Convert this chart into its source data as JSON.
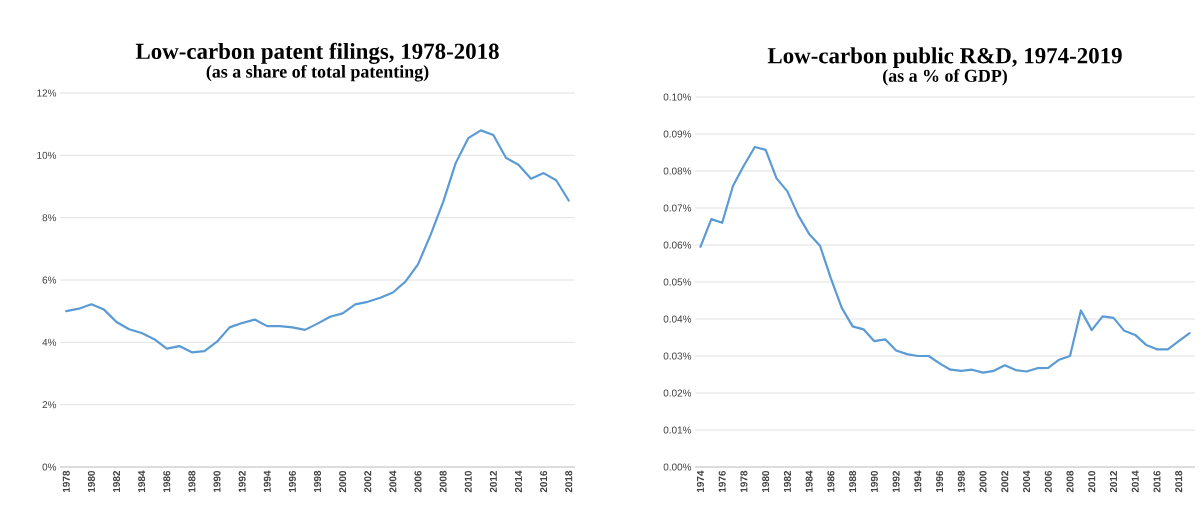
{
  "chart_data": [
    {
      "type": "line",
      "title": "Low-carbon patent filings, 1978-2018",
      "subtitle": "(as a share of total patenting)",
      "categories": [
        "1978",
        null,
        "1980",
        null,
        "1982",
        null,
        "1984",
        null,
        "1986",
        null,
        "1988",
        null,
        "1990",
        null,
        "1992",
        null,
        "1994",
        null,
        "1996",
        null,
        "1998",
        null,
        "2000",
        null,
        "2002",
        null,
        "2004",
        null,
        "2006",
        null,
        "2008",
        null,
        "2010",
        null,
        "2012",
        null,
        "2014",
        null,
        "2016",
        null,
        "2018"
      ],
      "series": [
        {
          "color": "#5b9bd5",
          "values": [
            5.0,
            5.08,
            5.22,
            5.05,
            4.65,
            4.42,
            4.3,
            4.1,
            3.8,
            3.88,
            3.68,
            3.72,
            4.02,
            4.48,
            4.62,
            4.73,
            4.52,
            4.52,
            4.48,
            4.4,
            4.6,
            4.82,
            4.93,
            5.22,
            5.3,
            5.43,
            5.6,
            5.95,
            6.5,
            7.45,
            8.5,
            9.75,
            10.55,
            10.8,
            10.65,
            9.92,
            9.7,
            9.25,
            9.43,
            9.2,
            8.55
          ]
        }
      ],
      "ylim": [
        0,
        12
      ],
      "yticks": [
        {
          "value": 0,
          "label": "0%"
        },
        {
          "value": 2,
          "label": "2%"
        },
        {
          "value": 4,
          "label": "4%"
        },
        {
          "value": 6,
          "label": "6%"
        },
        {
          "value": 8,
          "label": "8%"
        },
        {
          "value": 10,
          "label": "10%"
        },
        {
          "value": 12,
          "label": "12%"
        }
      ],
      "grid": "y",
      "marker": "none",
      "line_style": "solid"
    },
    {
      "type": "line",
      "title": "Low-carbon public R&D, 1974-2019",
      "subtitle": "(as a % of GDP)",
      "categories": [
        "1974",
        null,
        "1976",
        null,
        "1978",
        null,
        "1980",
        null,
        "1982",
        null,
        "1984",
        null,
        "1986",
        null,
        "1988",
        null,
        "1990",
        null,
        "1992",
        null,
        "1994",
        null,
        "1996",
        null,
        "1998",
        null,
        "2000",
        null,
        "2002",
        null,
        "2004",
        null,
        "2006",
        null,
        "2008",
        null,
        "2010",
        null,
        "2012",
        null,
        "2014",
        null,
        "2016",
        null,
        "2018",
        null
      ],
      "series": [
        {
          "color": "#5b9bd5",
          "values": [
            0.0595,
            0.067,
            0.066,
            0.076,
            0.0815,
            0.0865,
            0.0857,
            0.078,
            0.0745,
            0.068,
            0.063,
            0.0598,
            0.051,
            0.043,
            0.038,
            0.0372,
            0.034,
            0.0345,
            0.0315,
            0.0305,
            0.03,
            0.03,
            0.028,
            0.0263,
            0.026,
            0.0263,
            0.0255,
            0.026,
            0.0275,
            0.0262,
            0.0258,
            0.0267,
            0.0268,
            0.029,
            0.03,
            0.0423,
            0.037,
            0.0407,
            0.0403,
            0.0368,
            0.0357,
            0.033,
            0.0318,
            0.0318,
            0.034,
            0.0362
          ]
        }
      ],
      "ylim": [
        0,
        0.1
      ],
      "yticks": [
        {
          "value": 0,
          "label": "0.00%"
        },
        {
          "value": 0.01,
          "label": "0.01%"
        },
        {
          "value": 0.02,
          "label": "0.02%"
        },
        {
          "value": 0.03,
          "label": "0.03%"
        },
        {
          "value": 0.04,
          "label": "0.04%"
        },
        {
          "value": 0.05,
          "label": "0.05%"
        },
        {
          "value": 0.06,
          "label": "0.06%"
        },
        {
          "value": 0.07,
          "label": "0.07%"
        },
        {
          "value": 0.08,
          "label": "0.08%"
        },
        {
          "value": 0.09,
          "label": "0.09%"
        },
        {
          "value": 0.1,
          "label": "0.10%"
        }
      ],
      "grid": "y",
      "marker": "none",
      "line_style": "solid"
    }
  ]
}
